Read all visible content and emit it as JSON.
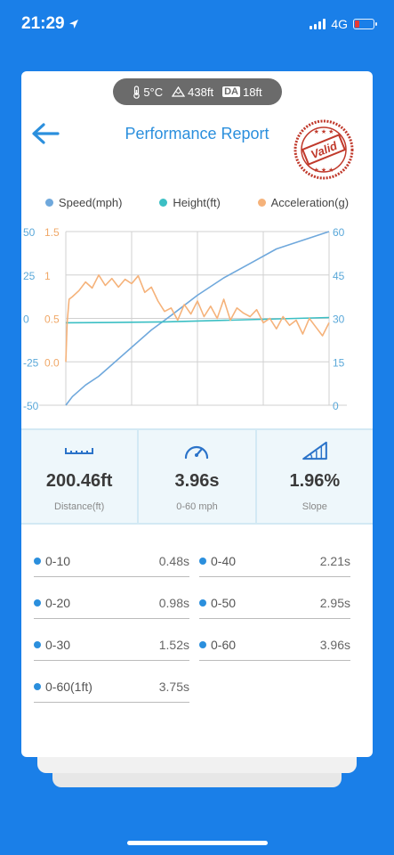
{
  "status_bar": {
    "time": "21:29",
    "network": "4G"
  },
  "conditions": {
    "temperature": "5°C",
    "altitude": "438ft",
    "da_label": "DA",
    "density_altitude": "18ft"
  },
  "header": {
    "title": "Performance Report",
    "stamp_text": "Valid"
  },
  "legend": {
    "speed": {
      "label": "Speed(mph)",
      "color": "#6fa8dc"
    },
    "height": {
      "label": "Height(ft)",
      "color": "#3bbfc4"
    },
    "acceleration": {
      "label": "Acceleration(g)",
      "color": "#f5b27a"
    }
  },
  "chart_data": {
    "type": "line",
    "left_axis_height": {
      "ticks": [
        "50",
        "25",
        "0",
        "-25",
        "-50"
      ],
      "ylim": [
        -50,
        50
      ]
    },
    "left_axis_acceleration": {
      "ticks": [
        "1.5",
        "1",
        "0.5",
        "0.0"
      ],
      "ylim": [
        -0.5,
        1.5
      ]
    },
    "right_axis_speed": {
      "ticks": [
        "60",
        "45",
        "30",
        "15",
        "0"
      ],
      "ylim": [
        0,
        60
      ]
    },
    "x_range": [
      0,
      4
    ],
    "grid": true,
    "series": [
      {
        "name": "Speed(mph)",
        "axis": "right",
        "x": [
          0,
          0.1,
          0.2,
          0.3,
          0.5,
          0.7,
          1.0,
          1.3,
          1.6,
          2.0,
          2.4,
          2.8,
          3.2,
          3.6,
          4.0
        ],
        "values": [
          0,
          3,
          5,
          7,
          10,
          14,
          20,
          26,
          31,
          38,
          44,
          49,
          54,
          57,
          60
        ]
      },
      {
        "name": "Height(ft)",
        "axis": "left_height",
        "x": [
          0,
          0.5,
          1.0,
          1.5,
          2.0,
          2.5,
          3.0,
          3.5,
          4.0
        ],
        "values": [
          -2.5,
          -2.4,
          -2.2,
          -2.0,
          -1.5,
          -1.0,
          -0.5,
          0,
          0.5
        ]
      },
      {
        "name": "Acceleration(g)",
        "axis": "left_acceleration",
        "x": [
          0,
          0.02,
          0.05,
          0.1,
          0.2,
          0.3,
          0.4,
          0.5,
          0.6,
          0.7,
          0.8,
          0.9,
          1.0,
          1.1,
          1.2,
          1.3,
          1.4,
          1.5,
          1.6,
          1.7,
          1.8,
          1.9,
          2.0,
          2.1,
          2.2,
          2.3,
          2.4,
          2.5,
          2.6,
          2.7,
          2.8,
          2.9,
          3.0,
          3.1,
          3.2,
          3.3,
          3.4,
          3.5,
          3.6,
          3.7,
          3.8,
          3.9,
          4.0
        ],
        "values": [
          0.0,
          0.45,
          0.72,
          0.75,
          0.82,
          0.92,
          0.85,
          1.0,
          0.88,
          0.96,
          0.86,
          0.95,
          0.9,
          0.99,
          0.8,
          0.86,
          0.7,
          0.58,
          0.62,
          0.48,
          0.66,
          0.55,
          0.7,
          0.52,
          0.64,
          0.5,
          0.72,
          0.48,
          0.62,
          0.56,
          0.52,
          0.6,
          0.45,
          0.5,
          0.38,
          0.52,
          0.42,
          0.48,
          0.32,
          0.5,
          0.4,
          0.3,
          0.45
        ]
      }
    ]
  },
  "stats": [
    {
      "value": "200.46ft",
      "label": "Distance(ft)",
      "icon": "ruler-icon"
    },
    {
      "value": "3.96s",
      "label": "0-60 mph",
      "icon": "speedometer-icon"
    },
    {
      "value": "1.96%",
      "label": "Slope",
      "icon": "slope-icon"
    }
  ],
  "splits": [
    {
      "name": "0-10",
      "time": "0.48s"
    },
    {
      "name": "0-40",
      "time": "2.21s"
    },
    {
      "name": "0-20",
      "time": "0.98s"
    },
    {
      "name": "0-50",
      "time": "2.95s"
    },
    {
      "name": "0-30",
      "time": "1.52s"
    },
    {
      "name": "0-60",
      "time": "3.96s"
    },
    {
      "name": "0-60(1ft)",
      "time": "3.75s"
    }
  ]
}
